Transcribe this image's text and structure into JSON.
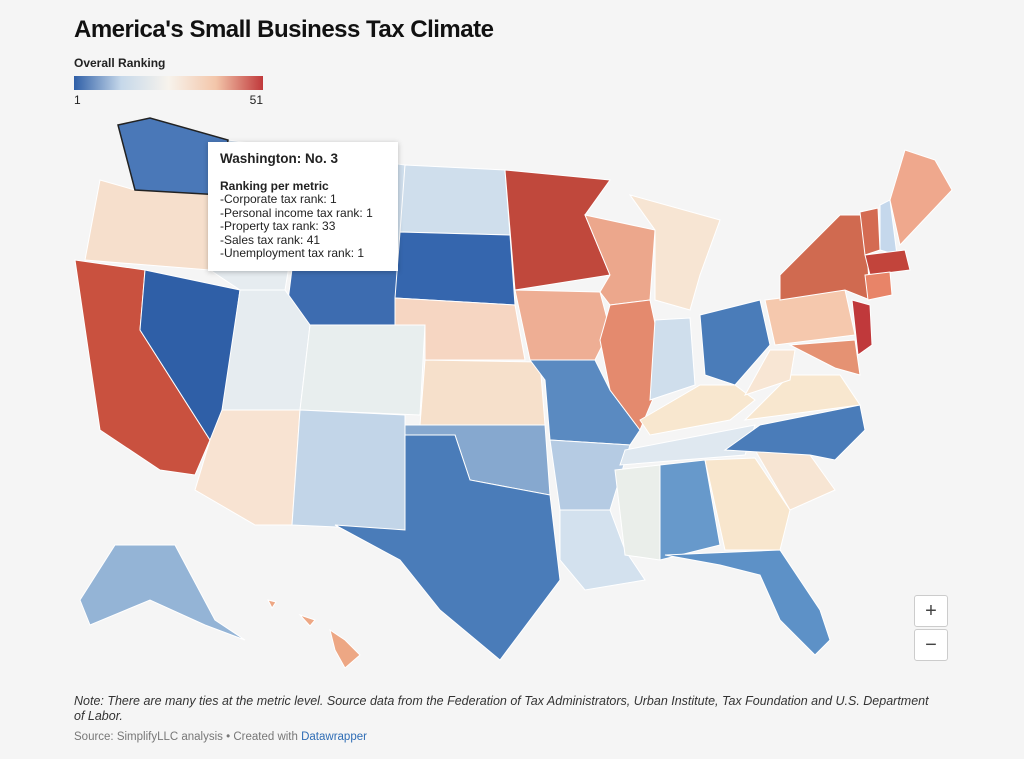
{
  "header": {
    "title": "America's Small Business Tax Climate"
  },
  "legend": {
    "title": "Overall Ranking",
    "min": 1,
    "max": 51
  },
  "tooltip": {
    "title": "Washington: No. 3",
    "subtitle": "Ranking per metric",
    "lines": [
      "-Corporate tax rank: 1",
      "-Personal income tax rank: 1",
      "-Property tax rank: 33",
      "-Sales tax rank: 41",
      "-Unemployment tax rank: 1"
    ]
  },
  "zoom": {
    "in": "+",
    "out": "−"
  },
  "footer": {
    "note": "Note: There are many ties at the metric level. Source data from the Federation of Tax Administrators, Urban Institute, Tax Foundation and U.S. Department of Labor.",
    "source": "Source: SimplifyLLC analysis • Created with",
    "link": "Datawrapper"
  }
}
